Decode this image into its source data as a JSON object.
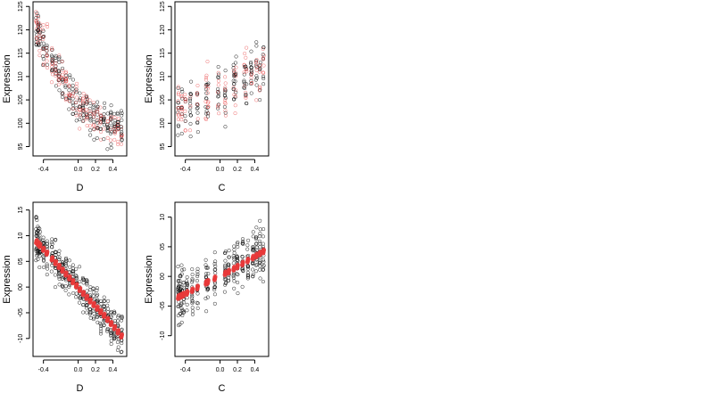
{
  "chart_data": [
    {
      "type": "scatter",
      "id": "top-left",
      "xlabel": "D",
      "ylabel": "Expression",
      "xlim": [
        -0.52,
        0.56
      ],
      "ylim": [
        9.3,
        12.6
      ],
      "xticks": [
        -0.4,
        0.0,
        0.2,
        0.4
      ],
      "xtick_labels": [
        "-0.4",
        "0.0",
        "0.2",
        "0.4"
      ],
      "yticks": [
        9.5,
        10.0,
        10.5,
        11.0,
        11.5,
        12.0,
        12.5
      ],
      "ytick_labels": [
        "95",
        "100",
        "105",
        "110",
        "115",
        "120",
        "125"
      ],
      "colors": {
        "observed": "#000000",
        "overlay": "#e8393a"
      },
      "trend": [
        [
          -0.48,
          12.0
        ],
        [
          -0.3,
          11.3
        ],
        [
          -0.1,
          10.7
        ],
        [
          0.1,
          10.3
        ],
        [
          0.3,
          10.0
        ],
        [
          0.5,
          9.9
        ]
      ],
      "observed_spread": 0.5,
      "overlay_style": "red-open-circles",
      "x_groups": [
        -0.48,
        -0.46,
        -0.44,
        -0.4,
        -0.36,
        -0.3,
        -0.26,
        -0.22,
        -0.18,
        -0.14,
        -0.1,
        -0.06,
        -0.02,
        0.02,
        0.06,
        0.1,
        0.14,
        0.18,
        0.22,
        0.26,
        0.3,
        0.34,
        0.38,
        0.42,
        0.46,
        0.5
      ]
    },
    {
      "type": "scatter",
      "id": "top-right",
      "xlabel": "C",
      "ylabel": "Expression",
      "xlim": [
        -0.52,
        0.56
      ],
      "ylim": [
        9.3,
        12.6
      ],
      "xticks": [
        -0.4,
        0.0,
        0.2,
        0.4
      ],
      "xtick_labels": [
        "-0.4",
        "0.0",
        "0.2",
        "0.4"
      ],
      "yticks": [
        9.5,
        10.0,
        10.5,
        11.0,
        11.5,
        12.0,
        12.5
      ],
      "ytick_labels": [
        "95",
        "100",
        "105",
        "110",
        "115",
        "120",
        "125"
      ],
      "colors": {
        "observed": "#000000",
        "overlay": "#e8393a"
      },
      "trend": [
        [
          -0.48,
          10.2
        ],
        [
          -0.3,
          10.35
        ],
        [
          -0.1,
          10.6
        ],
        [
          0.1,
          10.75
        ],
        [
          0.3,
          10.95
        ],
        [
          0.5,
          11.1
        ]
      ],
      "observed_spread": 0.65,
      "overlay_style": "red-open-circles",
      "x_groups": [
        -0.48,
        -0.44,
        -0.4,
        -0.34,
        -0.26,
        -0.16,
        -0.14,
        -0.02,
        0.06,
        0.16,
        0.18,
        0.28,
        0.3,
        0.36,
        0.42,
        0.46,
        0.5
      ]
    },
    {
      "type": "scatter",
      "id": "bottom-left",
      "xlabel": "D",
      "ylabel": "Expression",
      "xlim": [
        -0.52,
        0.56
      ],
      "ylim": [
        -1.35,
        1.65
      ],
      "xticks": [
        -0.4,
        0.0,
        0.2,
        0.4
      ],
      "xtick_labels": [
        "-0.4",
        "0.0",
        "0.2",
        "0.4"
      ],
      "yticks": [
        -1.0,
        -0.5,
        0.0,
        0.5,
        1.0,
        1.5
      ],
      "ytick_labels": [
        "-10",
        "-05",
        "00",
        "05",
        "10",
        "15"
      ],
      "colors": {
        "observed": "#000000",
        "overlay": "#e8393a"
      },
      "trend": [
        [
          -0.5,
          0.92
        ],
        [
          -0.3,
          0.55
        ],
        [
          -0.1,
          0.18
        ],
        [
          0.1,
          -0.2
        ],
        [
          0.3,
          -0.55
        ],
        [
          0.5,
          -0.95
        ]
      ],
      "observed_spread": 0.45,
      "overlay_style": "red-filled-line",
      "x_groups": [
        -0.48,
        -0.46,
        -0.44,
        -0.4,
        -0.36,
        -0.3,
        -0.26,
        -0.22,
        -0.18,
        -0.14,
        -0.1,
        -0.06,
        -0.02,
        0.02,
        0.06,
        0.1,
        0.14,
        0.18,
        0.22,
        0.26,
        0.3,
        0.34,
        0.38,
        0.42,
        0.46,
        0.5
      ]
    },
    {
      "type": "scatter",
      "id": "bottom-right",
      "xlabel": "C",
      "ylabel": "Expression",
      "xlim": [
        -0.52,
        0.56
      ],
      "ylim": [
        -1.35,
        1.25
      ],
      "xticks": [
        -0.4,
        0.0,
        0.2,
        0.4
      ],
      "xtick_labels": [
        "-0.4",
        "0.0",
        "0.2",
        "0.4"
      ],
      "yticks": [
        -1.0,
        -0.5,
        0.0,
        0.5,
        1.0
      ],
      "ytick_labels": [
        "-10",
        "-05",
        "00",
        "05",
        "10"
      ],
      "colors": {
        "observed": "#000000",
        "overlay": "#e8393a"
      },
      "trend": [
        [
          -0.48,
          -0.35
        ],
        [
          -0.3,
          -0.22
        ],
        [
          -0.1,
          -0.06
        ],
        [
          0.1,
          0.08
        ],
        [
          0.3,
          0.25
        ],
        [
          0.5,
          0.42
        ]
      ],
      "observed_spread": 0.5,
      "overlay_style": "red-filled-line",
      "x_groups": [
        -0.48,
        -0.46,
        -0.44,
        -0.42,
        -0.38,
        -0.32,
        -0.26,
        -0.16,
        -0.14,
        -0.06,
        0.06,
        0.1,
        0.16,
        0.2,
        0.26,
        0.32,
        0.38,
        0.42,
        0.46,
        0.5
      ]
    }
  ]
}
